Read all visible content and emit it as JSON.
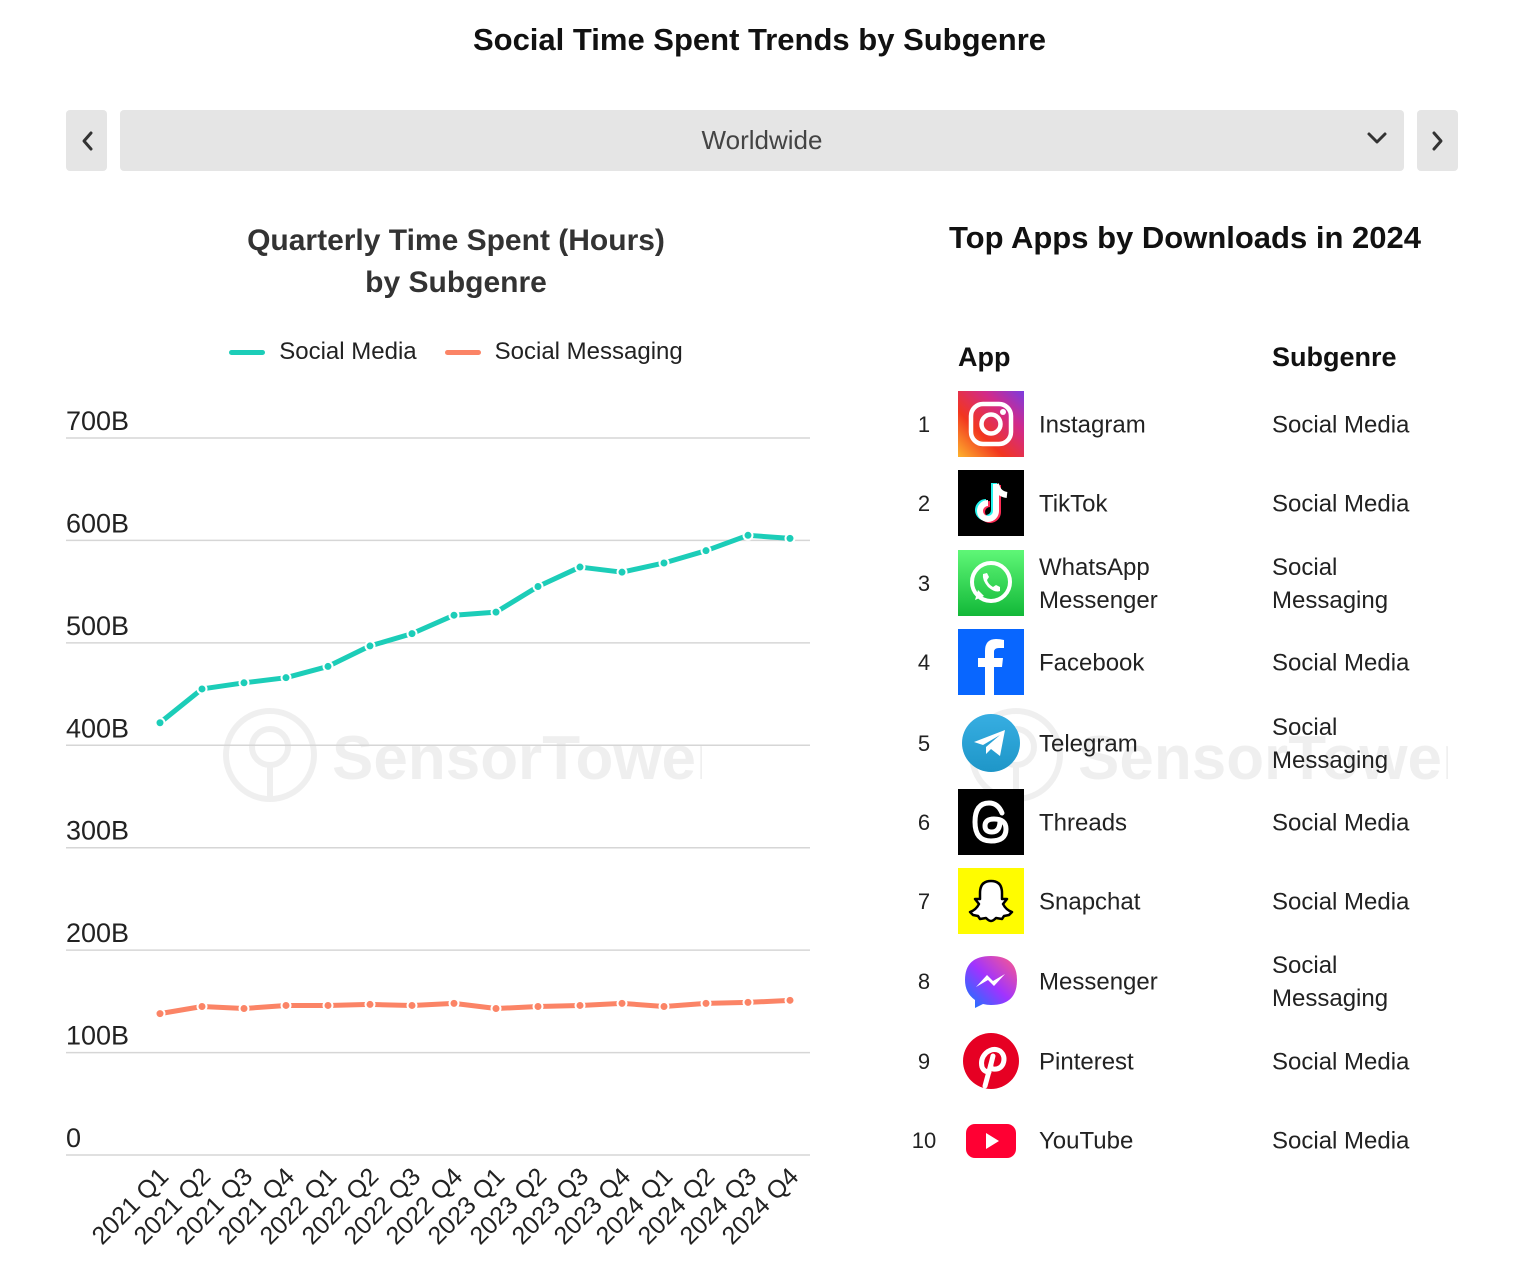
{
  "page": {
    "title": "Social Time Spent Trends by Subgenre"
  },
  "region": {
    "selected": "Worldwide"
  },
  "nav": {
    "prev_icon": "chevron-left-icon",
    "next_icon": "chevron-right-icon",
    "dropdown_icon": "chevron-down-icon"
  },
  "watermark": {
    "brand": "SensorTower"
  },
  "chart_data": {
    "type": "line",
    "title": "Quarterly Time Spent (Hours)",
    "subtitle": "by Subgenre",
    "categories": [
      "2021 Q1",
      "2021 Q2",
      "2021 Q3",
      "2021 Q4",
      "2022 Q1",
      "2022 Q2",
      "2022 Q3",
      "2022 Q4",
      "2023 Q1",
      "2023 Q2",
      "2023 Q3",
      "2023 Q4",
      "2024 Q1",
      "2024 Q2",
      "2024 Q3",
      "2024 Q4"
    ],
    "series": [
      {
        "name": "Social Media",
        "color": "#1ccdb8",
        "values": [
          422,
          455,
          461,
          466,
          477,
          497,
          509,
          527,
          530,
          555,
          574,
          569,
          578,
          590,
          605,
          602
        ]
      },
      {
        "name": "Social Messaging",
        "color": "#fb8466",
        "values": [
          138,
          145,
          143,
          146,
          146,
          147,
          146,
          148,
          143,
          145,
          146,
          148,
          145,
          148,
          149,
          151
        ]
      }
    ],
    "y_tick_labels": [
      "0",
      "100B",
      "200B",
      "300B",
      "400B",
      "500B",
      "600B",
      "700B"
    ],
    "y_unit": "billion hours",
    "ylim": [
      0,
      700
    ],
    "grid": true,
    "legend": "top-center"
  },
  "top_apps": {
    "title": "Top Apps by Downloads in 2024",
    "headers": {
      "app": "App",
      "subgenre": "Subgenre"
    },
    "rows": [
      {
        "rank": "1",
        "name": "Instagram",
        "subgenre": "Social Media",
        "icon": "instagram-icon"
      },
      {
        "rank": "2",
        "name": "TikTok",
        "subgenre": "Social Media",
        "icon": "tiktok-icon"
      },
      {
        "rank": "3",
        "name": "WhatsApp Messenger",
        "subgenre": "Social Messaging",
        "icon": "whatsapp-icon"
      },
      {
        "rank": "4",
        "name": "Facebook",
        "subgenre": "Social Media",
        "icon": "facebook-icon"
      },
      {
        "rank": "5",
        "name": "Telegram",
        "subgenre": "Social Messaging",
        "icon": "telegram-icon"
      },
      {
        "rank": "6",
        "name": "Threads",
        "subgenre": "Social Media",
        "icon": "threads-icon"
      },
      {
        "rank": "7",
        "name": "Snapchat",
        "subgenre": "Social Media",
        "icon": "snapchat-icon"
      },
      {
        "rank": "8",
        "name": "Messenger",
        "subgenre": "Social Messaging",
        "icon": "messenger-icon"
      },
      {
        "rank": "9",
        "name": "Pinterest",
        "subgenre": "Social Media",
        "icon": "pinterest-icon"
      },
      {
        "rank": "10",
        "name": "YouTube",
        "subgenre": "Social Media",
        "icon": "youtube-icon"
      }
    ]
  }
}
